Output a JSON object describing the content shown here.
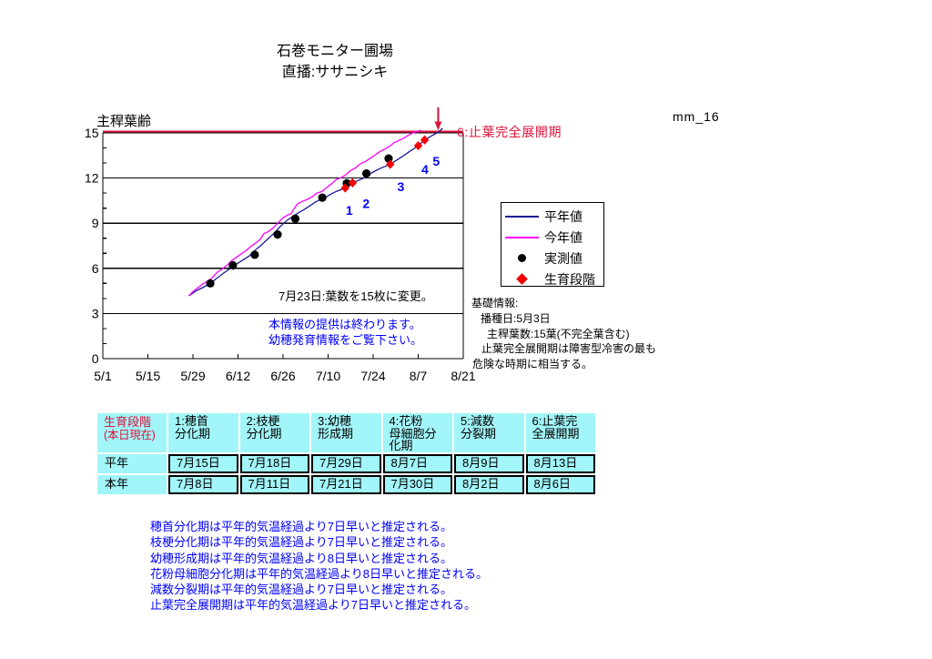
{
  "title": {
    "line1": "石巻モニター圃場",
    "line2": "直播:ササニシキ"
  },
  "watermark": "mm_16",
  "colors": {
    "normal_year_line": "#1a1a96",
    "current_year_line": "#ff00ff",
    "measured_point": "#000000",
    "stage_diamond": "#f40000",
    "accent_crimson": "#dc143c",
    "note_blue": "#0000ff",
    "table_cell_cyan": "#a2f5f8",
    "axis_black": "#000000"
  },
  "chart_data": {
    "type": "line",
    "title": "石巻モニター圃場",
    "subtitle": "直播:ササニシキ",
    "ylabel": "主稈葉齢",
    "xlabel": "",
    "ylim": [
      0,
      15
    ],
    "y_ticks": [
      0,
      3,
      6,
      9,
      12,
      15
    ],
    "x_axis": {
      "tick_labels": [
        "5/1",
        "5/15",
        "5/29",
        "6/12",
        "6/26",
        "7/10",
        "7/24",
        "8/7",
        "8/21"
      ],
      "tick_days": [
        0,
        14,
        28,
        42,
        56,
        70,
        84,
        98,
        112
      ],
      "range_days": [
        0,
        112
      ],
      "origin_date": "5/1"
    },
    "grid": "horizontal",
    "legend_position": "right",
    "top_line": {
      "value": 15,
      "color": "#dc143c"
    },
    "arrow": {
      "day": 104.2,
      "label": "6:止葉完全展開期",
      "color": "#dc143c"
    },
    "series": [
      {
        "name": "平年値",
        "type": "line",
        "color": "#1a1a96",
        "points": [
          [
            26.7,
            4.17
          ],
          [
            29,
            4.5
          ],
          [
            31,
            4.72
          ],
          [
            33.4,
            5.0
          ],
          [
            35.5,
            5.35
          ],
          [
            37.5,
            5.68
          ],
          [
            39.6,
            6.0
          ],
          [
            41.5,
            6.28
          ],
          [
            43.5,
            6.55
          ],
          [
            45.5,
            6.82
          ],
          [
            47,
            7.15
          ],
          [
            49,
            7.5
          ],
          [
            51,
            7.9
          ],
          [
            53,
            8.3
          ],
          [
            55,
            8.75
          ],
          [
            57,
            9.15
          ],
          [
            59,
            9.45
          ],
          [
            61,
            9.72
          ],
          [
            63,
            9.97
          ],
          [
            64.5,
            10.18
          ],
          [
            66,
            10.4
          ],
          [
            68,
            10.6
          ],
          [
            69.5,
            10.75
          ],
          [
            71,
            10.95
          ],
          [
            72.7,
            11.12
          ],
          [
            75.3,
            11.34
          ],
          [
            77.6,
            11.68
          ],
          [
            81.1,
            12.0
          ],
          [
            84,
            12.4
          ],
          [
            86,
            12.62
          ],
          [
            89.3,
            12.91
          ],
          [
            91,
            13.15
          ],
          [
            93,
            13.42
          ],
          [
            95,
            13.72
          ],
          [
            97,
            14.0
          ],
          [
            98,
            14.15
          ],
          [
            100,
            14.53
          ],
          [
            102,
            14.78
          ],
          [
            104,
            15.02
          ],
          [
            105.6,
            15.3
          ]
        ]
      },
      {
        "name": "今年値",
        "type": "line",
        "color": "#ff00ff",
        "points": [
          [
            26.7,
            4.17
          ],
          [
            28,
            4.45
          ],
          [
            29.5,
            4.7
          ],
          [
            31,
            4.95
          ],
          [
            32.5,
            5.15
          ],
          [
            34,
            5.38
          ],
          [
            35.5,
            5.72
          ],
          [
            37,
            5.95
          ],
          [
            38.5,
            6.18
          ],
          [
            40,
            6.5
          ],
          [
            41.5,
            6.73
          ],
          [
            43,
            6.95
          ],
          [
            44.5,
            7.18
          ],
          [
            46,
            7.45
          ],
          [
            47.5,
            7.68
          ],
          [
            49,
            7.95
          ],
          [
            50,
            8.3
          ],
          [
            51.5,
            8.45
          ],
          [
            53,
            8.7
          ],
          [
            54.5,
            9.05
          ],
          [
            56,
            9.35
          ],
          [
            57.5,
            9.55
          ],
          [
            58.5,
            9.62
          ],
          [
            59.5,
            10.0
          ],
          [
            60.5,
            10.28
          ],
          [
            62,
            10.45
          ],
          [
            63.5,
            10.58
          ],
          [
            65,
            10.75
          ],
          [
            66.5,
            11.0
          ],
          [
            68,
            11.1
          ],
          [
            69.5,
            11.35
          ],
          [
            71,
            11.6
          ],
          [
            72.5,
            11.9
          ],
          [
            74,
            12.02
          ],
          [
            75.5,
            12.22
          ],
          [
            77,
            12.5
          ],
          [
            78.5,
            12.68
          ],
          [
            80,
            12.95
          ],
          [
            81.5,
            13.08
          ],
          [
            83,
            13.3
          ],
          [
            84.5,
            13.52
          ],
          [
            86,
            13.75
          ],
          [
            87.5,
            13.92
          ],
          [
            89,
            14.1
          ],
          [
            90.5,
            14.35
          ],
          [
            92,
            14.5
          ],
          [
            93.5,
            14.65
          ],
          [
            95,
            14.85
          ],
          [
            96.3,
            15.0
          ],
          [
            98.8,
            15.18
          ]
        ]
      },
      {
        "name": "実測値",
        "type": "scatter",
        "marker": "circle",
        "color": "#000000",
        "points": [
          [
            33.4,
            5.0
          ],
          [
            40.4,
            6.2
          ],
          [
            47.2,
            6.9
          ],
          [
            54.3,
            8.25
          ],
          [
            59.8,
            9.3
          ],
          [
            68.2,
            10.7
          ],
          [
            75.8,
            11.65
          ],
          [
            81.9,
            12.3
          ],
          [
            88.8,
            13.3
          ]
        ]
      },
      {
        "name": "生育段階",
        "type": "scatter",
        "marker": "diamond",
        "color": "#f40000",
        "points": [
          [
            75.3,
            11.34
          ],
          [
            77.6,
            11.68
          ],
          [
            89.3,
            12.91
          ],
          [
            98.0,
            14.15
          ],
          [
            100.0,
            14.53
          ]
        ]
      }
    ],
    "stage_labels": {
      "color": "#0000ff",
      "items": [
        {
          "text": "1",
          "day": 76.6,
          "value": 9.86
        },
        {
          "text": "2",
          "day": 81.8,
          "value": 10.32
        },
        {
          "text": "3",
          "day": 92.6,
          "value": 11.43
        },
        {
          "text": "4",
          "day": 100.1,
          "value": 12.58
        },
        {
          "text": "5",
          "day": 103.6,
          "value": 13.12
        }
      ]
    }
  },
  "legend": {
    "items": [
      {
        "label": "平年値",
        "marker": "line",
        "color": "#1a1a96"
      },
      {
        "label": "今年値",
        "marker": "line",
        "color": "#ff00ff"
      },
      {
        "label": "実測値",
        "marker": "dot",
        "color": "#000000"
      },
      {
        "label": "生育段階",
        "marker": "diamond",
        "color": "#f40000"
      }
    ]
  },
  "annotations": {
    "leaf_change": "7月23日:葉数を15枚に変更。",
    "info_end_line1": "本情報の提供は終わります。",
    "info_end_line2": "幼穂発育情報をご覧下さい。"
  },
  "basic_info": {
    "lines": [
      "基礎情報:",
      "播種日:5月3日",
      "主稈葉数:15葉(不完全葉含む)",
      "止葉完全展開期は障害型冷害の最も",
      "危険な時期に相当する。"
    ]
  },
  "stage_table": {
    "corner_label_line1": "生育段階",
    "corner_label_line2": "(本日現在)",
    "columns": [
      "1:穂首\n分化期",
      "2:枝梗\n分化期",
      "3:幼穂\n形成期",
      "4:花粉\n母細胞分\n化期",
      "5:減数\n分裂期",
      "6:止葉完\n全展開期"
    ],
    "rows": [
      {
        "label": "平年",
        "values": [
          "7月15日",
          "7月18日",
          "7月29日",
          "8月7日",
          "8月9日",
          "8月13日"
        ]
      },
      {
        "label": "本年",
        "values": [
          "7月8日",
          "7月11日",
          "7月21日",
          "7月30日",
          "8月2日",
          "8月6日"
        ]
      }
    ]
  },
  "footnotes": {
    "color": "#0000ff",
    "lines": [
      "穂首分化期は平年的気温経過より7日早いと推定される。",
      "枝梗分化期は平年的気温経過より7日早いと推定される。",
      "幼穂形成期は平年的気温経過より8日早いと推定される。",
      "花粉母細胞分化期は平年的気温経過より8日早いと推定される。",
      "減数分裂期は平年的気温経過より7日早いと推定される。",
      "止葉完全展開期は平年的気温経過より7日早いと推定される。"
    ]
  }
}
